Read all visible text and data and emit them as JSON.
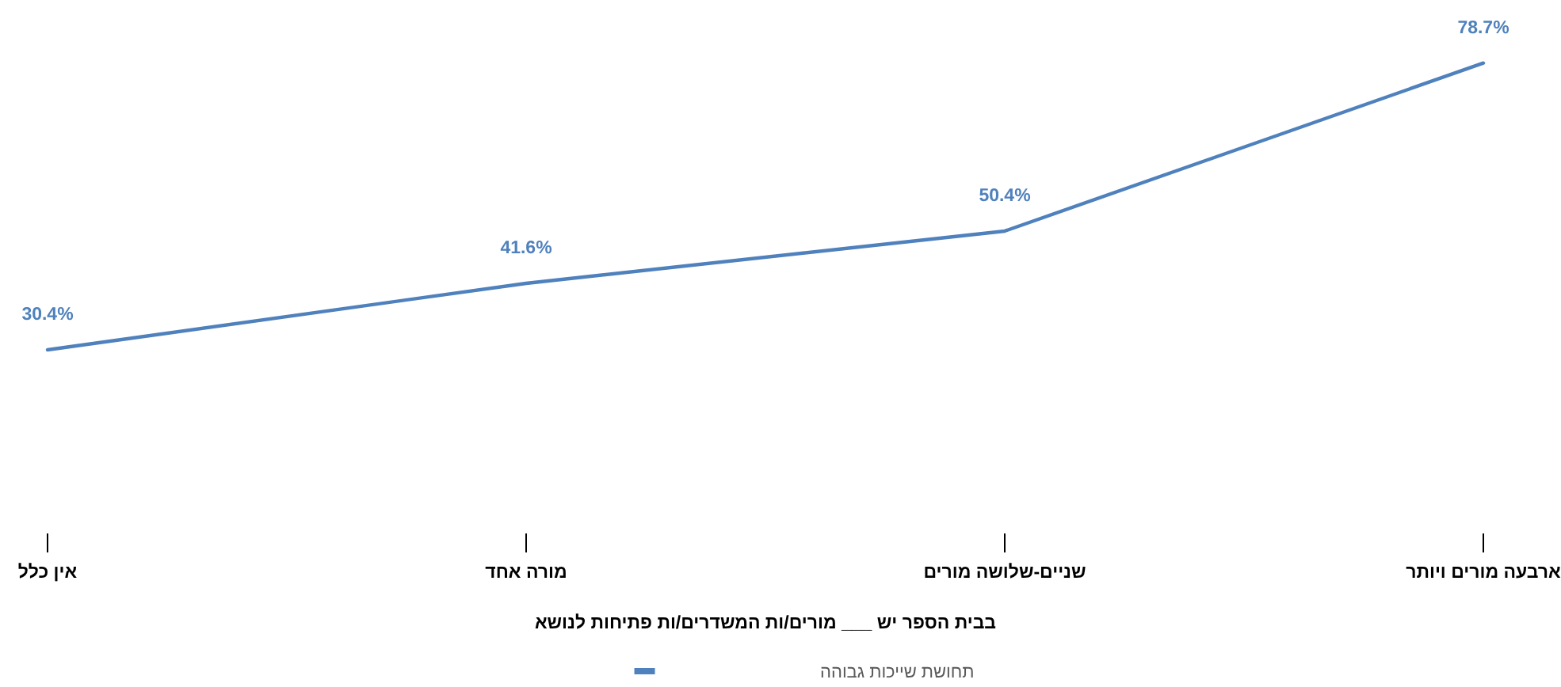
{
  "chart_data": {
    "type": "line",
    "xlabel": "בבית הספר יש ___ מורים/ות המשדרים/ות פתיחות לנושא",
    "categories": [
      "אין כלל",
      "מורה אחד",
      "שניים-שלושה מורים",
      "ארבעה מורים ויותר"
    ],
    "series": [
      {
        "name": "תחושת שייכות גבוהה",
        "color": "#4f81bd",
        "values": [
          30.4,
          41.6,
          50.4,
          78.7
        ],
        "value_labels": [
          "30.4%",
          "41.6%",
          "50.4%",
          "78.7%"
        ]
      }
    ],
    "grid": false,
    "legend": "bottom",
    "marker": "none",
    "line_style": "solid"
  }
}
